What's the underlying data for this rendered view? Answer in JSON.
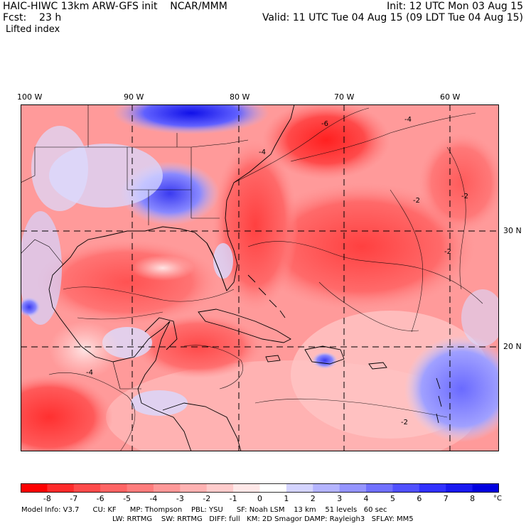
{
  "header": {
    "model_line": "HAIC-HIWC 13km ARW-GFS init    NCAR/MMM",
    "fcst_line": "Fcst:    23 h",
    "field_name": "Lifted index",
    "init_line": "Init: 12 UTC Mon 03 Aug 15",
    "valid_line": "Valid: 11 UTC Tue 04 Aug 15 (09 LDT Tue 04 Aug 15)"
  },
  "map": {
    "lon_labels": [
      "100 W",
      "90 W",
      "80 W",
      "70 W",
      "60 W"
    ],
    "lat_labels": [
      "30 N",
      "20 N"
    ],
    "contour_labels": [
      "-6",
      "-4",
      "-4",
      "-2",
      "-2",
      "-2",
      "-2",
      "-4"
    ]
  },
  "colorbar": {
    "ticks": [
      "-8",
      "-7",
      "-6",
      "-5",
      "-4",
      "-3",
      "-2",
      "-1",
      "0",
      "1",
      "2",
      "3",
      "4",
      "5",
      "6",
      "7",
      "8"
    ],
    "unit": "°C",
    "colors": [
      "#ff0000",
      "#ff2a2a",
      "#ff4a4a",
      "#ff6464",
      "#ff7c7c",
      "#ff9898",
      "#ffb2b2",
      "#ffcccc",
      "#ffe8e8",
      "#ffffff",
      "#d4d4ff",
      "#b4b4ff",
      "#9494ff",
      "#7070ff",
      "#5050ff",
      "#3030ff",
      "#1818f0",
      "#0000e0"
    ]
  },
  "footer": {
    "line1": "Model Info: V3.7      CU: KF      MP: Thompson    PBL: YSU      SF: Noah LSM    13 km    51 levels   60 sec",
    "line2": "LW: RRTMG    SW: RRTMG   DIFF: full   KM: 2D Smagor DAMP: Rayleigh3   SFLAY: MM5"
  }
}
